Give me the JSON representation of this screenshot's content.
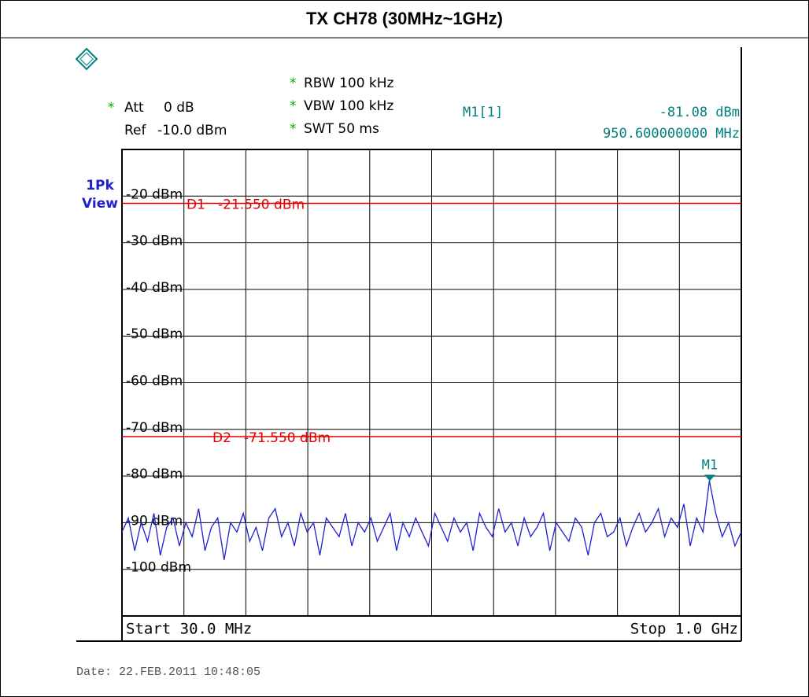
{
  "chart_data": {
    "type": "line",
    "title": "TX CH78 (30MHz~1GHz)",
    "coupled_mark": "*",
    "att_label": "Att",
    "att": "0 dB",
    "ref_label": "Ref",
    "ref": "-10.0 dBm",
    "rbw": "RBW 100 kHz",
    "vbw": "VBW 100 kHz",
    "swt": "SWT 50 ms",
    "detector": "1Pk",
    "view": "View",
    "start": "Start 30.0 MHz",
    "stop": "Stop 1.0 GHz",
    "date": "Date: 22.FEB.2011  10:48:05",
    "xlim": [
      30,
      1000
    ],
    "ylim": [
      -10,
      -110
    ],
    "yticks": [
      {
        "value": -20,
        "label": "-20 dBm"
      },
      {
        "value": -30,
        "label": "-30 dBm"
      },
      {
        "value": -40,
        "label": "-40 dBm"
      },
      {
        "value": -50,
        "label": "-50 dBm"
      },
      {
        "value": -60,
        "label": "-60 dBm"
      },
      {
        "value": -70,
        "label": "-70 dBm"
      },
      {
        "value": -80,
        "label": "-80 dBm"
      },
      {
        "value": -90,
        "label": "-90 dBm"
      },
      {
        "value": -100,
        "label": "-100 dBm"
      }
    ],
    "grid": true,
    "display_lines": [
      {
        "name": "D1",
        "value": -21.55,
        "value_label": "-21.550 dBm",
        "color": "#e00000"
      },
      {
        "name": "D2",
        "value": -71.55,
        "value_label": "-71.550 dBm",
        "color": "#e00000"
      }
    ],
    "marker": {
      "name": "M1",
      "label": "M1[1]",
      "x": 950.6,
      "value": -81.08,
      "value_label": "-81.08 dBm",
      "x_label": "950.600000000 MHz",
      "color": "#008080"
    },
    "series": [
      {
        "color": "#2020d0",
        "x": [
          30,
          40,
          50,
          60,
          70,
          80,
          90,
          100,
          110,
          120,
          130,
          140,
          150,
          160,
          170,
          180,
          190,
          200,
          210,
          220,
          230,
          240,
          250,
          260,
          270,
          280,
          290,
          300,
          310,
          320,
          330,
          340,
          350,
          360,
          370,
          380,
          390,
          400,
          410,
          420,
          430,
          440,
          450,
          460,
          470,
          480,
          490,
          500,
          510,
          520,
          530,
          540,
          550,
          560,
          570,
          580,
          590,
          600,
          610,
          620,
          630,
          640,
          650,
          660,
          670,
          680,
          690,
          700,
          710,
          720,
          730,
          740,
          750,
          760,
          770,
          780,
          790,
          800,
          810,
          820,
          830,
          840,
          850,
          860,
          870,
          880,
          890,
          900,
          910,
          920,
          930,
          940,
          950,
          960,
          970,
          980,
          990,
          1000
        ],
        "values": [
          -92,
          -89,
          -96,
          -90,
          -94,
          -88,
          -97,
          -91,
          -89,
          -95,
          -90,
          -93,
          -87,
          -96,
          -91,
          -89,
          -98,
          -90,
          -92,
          -88,
          -94,
          -91,
          -96,
          -89,
          -87,
          -93,
          -90,
          -95,
          -88,
          -92,
          -90,
          -97,
          -89,
          -91,
          -93,
          -88,
          -95,
          -90,
          -92,
          -89,
          -94,
          -91,
          -88,
          -96,
          -90,
          -93,
          -89,
          -92,
          -95,
          -88,
          -91,
          -94,
          -89,
          -92,
          -90,
          -96,
          -88,
          -91,
          -93,
          -87,
          -92,
          -90,
          -95,
          -89,
          -93,
          -91,
          -88,
          -96,
          -90,
          -92,
          -94,
          -89,
          -91,
          -97,
          -90,
          -88,
          -93,
          -92,
          -89,
          -95,
          -91,
          -88,
          -92,
          -90,
          -87,
          -93,
          -89,
          -91,
          -86,
          -95,
          -89,
          -92,
          -81,
          -88,
          -93,
          -90,
          -95,
          -92
        ]
      }
    ]
  }
}
